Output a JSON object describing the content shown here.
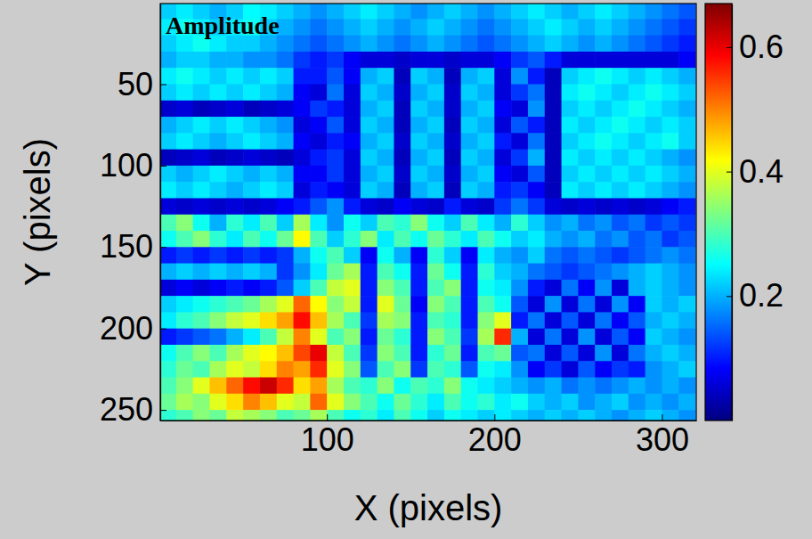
{
  "chart_data": {
    "type": "heatmap",
    "annotation": "Amplitude",
    "x_label": "X (pixels)",
    "y_label": "Y (pixels)",
    "xlim": [
      0.5,
      320.5
    ],
    "ylim": [
      256.5,
      0.5
    ],
    "xticks": [
      100,
      200,
      300
    ],
    "yticks": [
      50,
      100,
      150,
      200,
      250
    ],
    "x": [
      5,
      15,
      25,
      35,
      45,
      55,
      65,
      75,
      85,
      95,
      105,
      115,
      125,
      135,
      145,
      155,
      165,
      175,
      185,
      195,
      205,
      215,
      225,
      235,
      245,
      255,
      265,
      275,
      285,
      295,
      305,
      315
    ],
    "y": [
      5,
      15,
      25,
      35,
      45,
      55,
      65,
      75,
      85,
      95,
      105,
      115,
      125,
      135,
      145,
      155,
      165,
      175,
      185,
      195,
      205,
      215,
      225,
      235,
      245,
      255
    ],
    "z": [
      [
        0.22,
        0.24,
        0.22,
        0.2,
        0.22,
        0.25,
        0.24,
        0.22,
        0.2,
        0.18,
        0.2,
        0.22,
        0.24,
        0.22,
        0.2,
        0.18,
        0.2,
        0.22,
        0.2,
        0.18,
        0.2,
        0.22,
        0.24,
        0.22,
        0.2,
        0.22,
        0.24,
        0.22,
        0.2,
        0.18,
        0.16,
        0.14
      ],
      [
        0.24,
        0.26,
        0.24,
        0.22,
        0.24,
        0.26,
        0.22,
        0.2,
        0.18,
        0.16,
        0.18,
        0.2,
        0.22,
        0.2,
        0.18,
        0.2,
        0.22,
        0.2,
        0.18,
        0.16,
        0.18,
        0.2,
        0.22,
        0.24,
        0.22,
        0.2,
        0.22,
        0.2,
        0.18,
        0.16,
        0.14,
        0.12
      ],
      [
        0.22,
        0.24,
        0.26,
        0.24,
        0.22,
        0.22,
        0.2,
        0.18,
        0.16,
        0.14,
        0.16,
        0.18,
        0.2,
        0.18,
        0.16,
        0.18,
        0.2,
        0.18,
        0.16,
        0.14,
        0.16,
        0.18,
        0.2,
        0.22,
        0.2,
        0.18,
        0.2,
        0.18,
        0.16,
        0.14,
        0.12,
        0.1
      ],
      [
        0.2,
        0.22,
        0.22,
        0.2,
        0.2,
        0.18,
        0.18,
        0.16,
        0.12,
        0.1,
        0.12,
        0.08,
        0.06,
        0.06,
        0.05,
        0.06,
        0.06,
        0.05,
        0.06,
        0.06,
        0.08,
        0.12,
        0.14,
        0.1,
        0.06,
        0.06,
        0.06,
        0.06,
        0.06,
        0.06,
        0.06,
        0.08
      ],
      [
        0.24,
        0.26,
        0.24,
        0.22,
        0.24,
        0.22,
        0.24,
        0.22,
        0.1,
        0.1,
        0.14,
        0.08,
        0.2,
        0.22,
        0.04,
        0.22,
        0.2,
        0.04,
        0.2,
        0.22,
        0.06,
        0.18,
        0.1,
        0.04,
        0.22,
        0.24,
        0.26,
        0.24,
        0.22,
        0.24,
        0.22,
        0.2
      ],
      [
        0.22,
        0.24,
        0.22,
        0.24,
        0.22,
        0.24,
        0.22,
        0.2,
        0.08,
        0.06,
        0.16,
        0.06,
        0.22,
        0.2,
        0.05,
        0.2,
        0.22,
        0.05,
        0.22,
        0.2,
        0.06,
        0.12,
        0.16,
        0.04,
        0.24,
        0.26,
        0.24,
        0.22,
        0.24,
        0.26,
        0.24,
        0.22
      ],
      [
        0.05,
        0.06,
        0.04,
        0.05,
        0.06,
        0.04,
        0.05,
        0.06,
        0.08,
        0.12,
        0.1,
        0.06,
        0.2,
        0.22,
        0.04,
        0.22,
        0.2,
        0.05,
        0.2,
        0.22,
        0.08,
        0.06,
        0.18,
        0.04,
        0.22,
        0.24,
        0.22,
        0.24,
        0.26,
        0.24,
        0.22,
        0.2
      ],
      [
        0.2,
        0.22,
        0.24,
        0.22,
        0.24,
        0.22,
        0.2,
        0.18,
        0.06,
        0.08,
        0.14,
        0.06,
        0.22,
        0.2,
        0.04,
        0.2,
        0.22,
        0.04,
        0.22,
        0.2,
        0.06,
        0.14,
        0.1,
        0.04,
        0.24,
        0.22,
        0.24,
        0.26,
        0.24,
        0.22,
        0.24,
        0.22
      ],
      [
        0.22,
        0.24,
        0.22,
        0.2,
        0.22,
        0.24,
        0.22,
        0.2,
        0.08,
        0.06,
        0.1,
        0.08,
        0.2,
        0.22,
        0.05,
        0.22,
        0.2,
        0.05,
        0.2,
        0.22,
        0.1,
        0.06,
        0.16,
        0.04,
        0.22,
        0.24,
        0.26,
        0.24,
        0.22,
        0.24,
        0.26,
        0.22
      ],
      [
        0.04,
        0.05,
        0.06,
        0.04,
        0.05,
        0.06,
        0.05,
        0.04,
        0.06,
        0.1,
        0.12,
        0.06,
        0.22,
        0.2,
        0.04,
        0.2,
        0.22,
        0.04,
        0.22,
        0.2,
        0.06,
        0.12,
        0.2,
        0.04,
        0.24,
        0.22,
        0.24,
        0.22,
        0.24,
        0.22,
        0.2,
        0.18
      ],
      [
        0.22,
        0.2,
        0.22,
        0.24,
        0.22,
        0.2,
        0.22,
        0.2,
        0.08,
        0.08,
        0.12,
        0.06,
        0.2,
        0.22,
        0.05,
        0.22,
        0.2,
        0.05,
        0.2,
        0.22,
        0.08,
        0.06,
        0.14,
        0.04,
        0.22,
        0.24,
        0.22,
        0.24,
        0.22,
        0.24,
        0.22,
        0.2
      ],
      [
        0.24,
        0.22,
        0.24,
        0.22,
        0.2,
        0.22,
        0.24,
        0.22,
        0.06,
        0.1,
        0.08,
        0.06,
        0.22,
        0.2,
        0.04,
        0.2,
        0.22,
        0.04,
        0.22,
        0.2,
        0.1,
        0.12,
        0.08,
        0.04,
        0.24,
        0.22,
        0.24,
        0.22,
        0.24,
        0.22,
        0.2,
        0.18
      ],
      [
        0.06,
        0.05,
        0.06,
        0.05,
        0.06,
        0.05,
        0.06,
        0.08,
        0.1,
        0.14,
        0.18,
        0.1,
        0.06,
        0.05,
        0.08,
        0.06,
        0.05,
        0.1,
        0.06,
        0.05,
        0.12,
        0.16,
        0.12,
        0.06,
        0.05,
        0.06,
        0.05,
        0.06,
        0.05,
        0.06,
        0.08,
        0.1
      ],
      [
        0.3,
        0.34,
        0.26,
        0.2,
        0.28,
        0.24,
        0.3,
        0.22,
        0.36,
        0.24,
        0.18,
        0.26,
        0.22,
        0.3,
        0.28,
        0.34,
        0.26,
        0.22,
        0.3,
        0.24,
        0.2,
        0.28,
        0.22,
        0.18,
        0.2,
        0.16,
        0.18,
        0.14,
        0.16,
        0.12,
        0.14,
        0.12
      ],
      [
        0.26,
        0.3,
        0.34,
        0.28,
        0.24,
        0.3,
        0.26,
        0.32,
        0.42,
        0.3,
        0.22,
        0.28,
        0.34,
        0.24,
        0.3,
        0.26,
        0.32,
        0.28,
        0.24,
        0.3,
        0.26,
        0.22,
        0.24,
        0.2,
        0.18,
        0.2,
        0.16,
        0.18,
        0.14,
        0.16,
        0.12,
        0.14
      ],
      [
        0.1,
        0.12,
        0.1,
        0.12,
        0.1,
        0.12,
        0.1,
        0.12,
        0.2,
        0.26,
        0.3,
        0.22,
        0.08,
        0.26,
        0.2,
        0.08,
        0.28,
        0.22,
        0.08,
        0.24,
        0.2,
        0.18,
        0.22,
        0.16,
        0.14,
        0.16,
        0.14,
        0.12,
        0.14,
        0.16,
        0.18,
        0.16
      ],
      [
        0.2,
        0.22,
        0.2,
        0.22,
        0.2,
        0.22,
        0.2,
        0.12,
        0.18,
        0.24,
        0.32,
        0.36,
        0.1,
        0.3,
        0.26,
        0.1,
        0.32,
        0.26,
        0.1,
        0.28,
        0.22,
        0.2,
        0.16,
        0.14,
        0.12,
        0.14,
        0.16,
        0.18,
        0.2,
        0.22,
        0.2,
        0.18
      ],
      [
        0.06,
        0.08,
        0.06,
        0.08,
        0.1,
        0.08,
        0.1,
        0.14,
        0.22,
        0.3,
        0.38,
        0.4,
        0.1,
        0.34,
        0.3,
        0.1,
        0.3,
        0.34,
        0.1,
        0.26,
        0.24,
        0.18,
        0.1,
        0.06,
        0.16,
        0.08,
        0.18,
        0.06,
        0.2,
        0.22,
        0.2,
        0.18
      ],
      [
        0.22,
        0.24,
        0.26,
        0.28,
        0.3,
        0.32,
        0.36,
        0.4,
        0.52,
        0.42,
        0.34,
        0.38,
        0.1,
        0.4,
        0.32,
        0.08,
        0.34,
        0.3,
        0.1,
        0.3,
        0.26,
        0.14,
        0.06,
        0.18,
        0.06,
        0.16,
        0.06,
        0.18,
        0.08,
        0.22,
        0.2,
        0.22
      ],
      [
        0.24,
        0.28,
        0.3,
        0.34,
        0.38,
        0.4,
        0.44,
        0.48,
        0.58,
        0.46,
        0.36,
        0.3,
        0.12,
        0.36,
        0.34,
        0.1,
        0.3,
        0.28,
        0.1,
        0.34,
        0.4,
        0.1,
        0.16,
        0.06,
        0.14,
        0.06,
        0.16,
        0.08,
        0.14,
        0.2,
        0.22,
        0.2
      ],
      [
        0.1,
        0.12,
        0.14,
        0.16,
        0.2,
        0.24,
        0.3,
        0.38,
        0.5,
        0.4,
        0.3,
        0.34,
        0.1,
        0.32,
        0.28,
        0.1,
        0.34,
        0.3,
        0.12,
        0.36,
        0.56,
        0.2,
        0.06,
        0.16,
        0.06,
        0.18,
        0.06,
        0.14,
        0.08,
        0.22,
        0.2,
        0.18
      ],
      [
        0.26,
        0.3,
        0.34,
        0.3,
        0.36,
        0.4,
        0.42,
        0.46,
        0.54,
        0.6,
        0.38,
        0.3,
        0.12,
        0.34,
        0.3,
        0.1,
        0.28,
        0.32,
        0.1,
        0.3,
        0.32,
        0.14,
        0.16,
        0.06,
        0.14,
        0.06,
        0.18,
        0.06,
        0.16,
        0.2,
        0.22,
        0.2
      ],
      [
        0.28,
        0.32,
        0.3,
        0.36,
        0.4,
        0.38,
        0.44,
        0.5,
        0.48,
        0.56,
        0.4,
        0.34,
        0.14,
        0.3,
        0.34,
        0.12,
        0.3,
        0.28,
        0.14,
        0.26,
        0.24,
        0.18,
        0.08,
        0.12,
        0.06,
        0.14,
        0.08,
        0.12,
        0.1,
        0.18,
        0.2,
        0.22
      ],
      [
        0.3,
        0.34,
        0.4,
        0.46,
        0.52,
        0.58,
        0.62,
        0.56,
        0.44,
        0.48,
        0.36,
        0.3,
        0.28,
        0.34,
        0.26,
        0.3,
        0.28,
        0.34,
        0.26,
        0.24,
        0.22,
        0.2,
        0.18,
        0.2,
        0.16,
        0.18,
        0.16,
        0.18,
        0.2,
        0.18,
        0.2,
        0.18
      ],
      [
        0.32,
        0.36,
        0.34,
        0.4,
        0.44,
        0.5,
        0.46,
        0.4,
        0.38,
        0.52,
        0.4,
        0.34,
        0.3,
        0.26,
        0.32,
        0.28,
        0.24,
        0.3,
        0.26,
        0.28,
        0.24,
        0.26,
        0.22,
        0.2,
        0.22,
        0.18,
        0.2,
        0.22,
        0.18,
        0.2,
        0.18,
        0.2
      ],
      [
        0.28,
        0.3,
        0.34,
        0.32,
        0.38,
        0.36,
        0.34,
        0.3,
        0.32,
        0.36,
        0.3,
        0.26,
        0.28,
        0.24,
        0.3,
        0.26,
        0.22,
        0.26,
        0.24,
        0.22,
        0.24,
        0.22,
        0.2,
        0.22,
        0.2,
        0.22,
        0.2,
        0.18,
        0.2,
        0.22,
        0.2,
        0.18
      ]
    ],
    "colorbar": {
      "lim": [
        0,
        0.67
      ],
      "ticks": [
        0.2,
        0.4,
        0.6
      ]
    }
  }
}
